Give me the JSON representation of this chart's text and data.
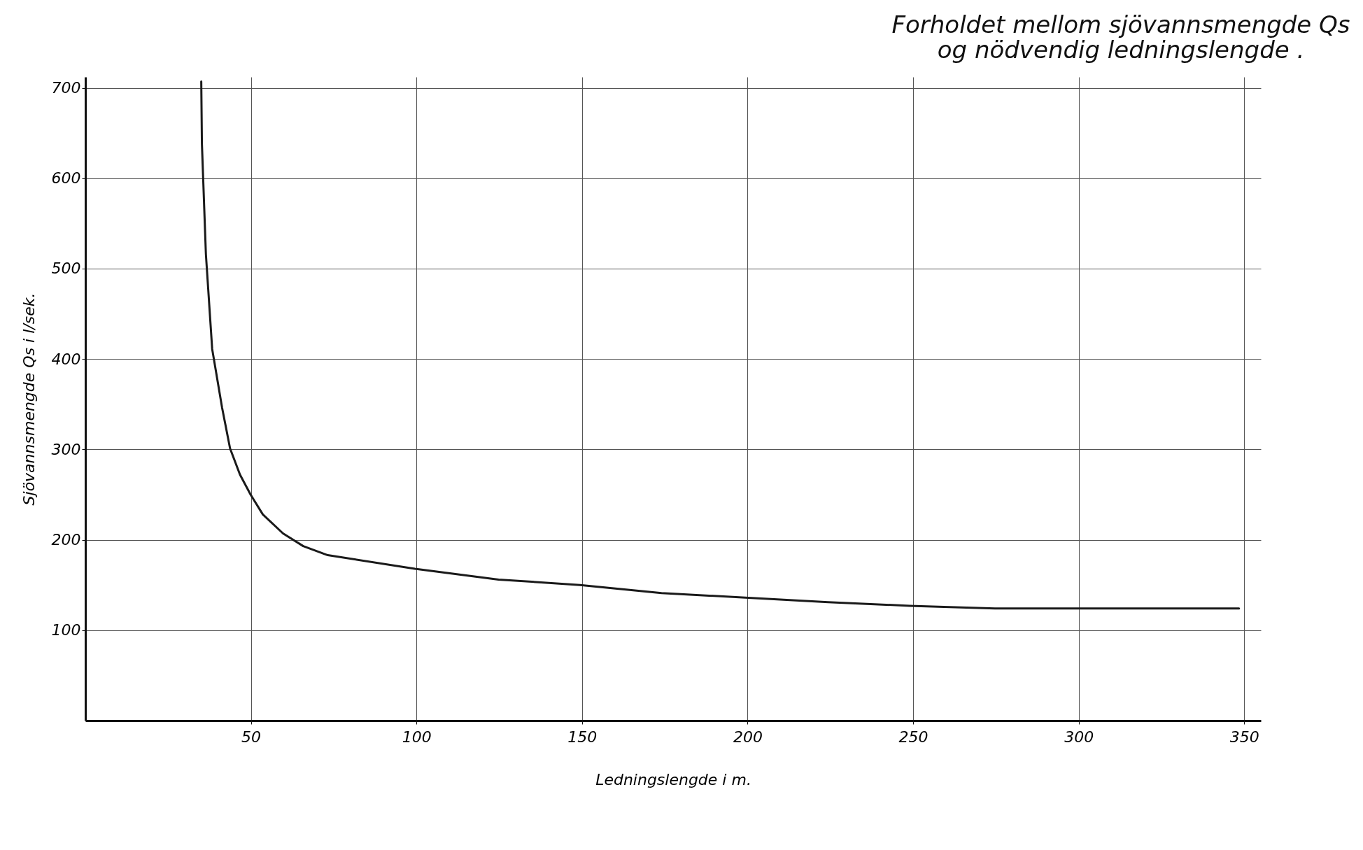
{
  "chart_data": {
    "type": "line",
    "title": "Forholdet  mellom  sjövannsmengde  Qs\nog  nödvendig  ledningslengde .",
    "xlabel": "Ledningslengde  i  m.",
    "ylabel": "Sjövannsmengde  Qs  i  l/sek.",
    "x": [
      35,
      35.2,
      36.4,
      38.3,
      41.3,
      43.7,
      46.7,
      49.9,
      53.6,
      59.7,
      65.8,
      73.2,
      99.5,
      124.8,
      149.4,
      174,
      199.3,
      224.3,
      249,
      274.7,
      299.3,
      348.4
    ],
    "series": [
      {
        "color": "#1a1a1a",
        "values": [
          707,
          638,
          516,
          411,
          346,
          301,
          272,
          250,
          228,
          207,
          193,
          183,
          168,
          156,
          150,
          141,
          136,
          131,
          127,
          124,
          124,
          124
        ]
      }
    ],
    "xlim": [
      0,
      355
    ],
    "ylim": [
      0,
      712
    ],
    "xticks": [
      50,
      100,
      150,
      200,
      250,
      300,
      350
    ],
    "yticks": [
      100,
      200,
      300,
      400,
      500,
      600,
      700
    ],
    "grid": true,
    "marker": "none",
    "line_style": "solid"
  }
}
